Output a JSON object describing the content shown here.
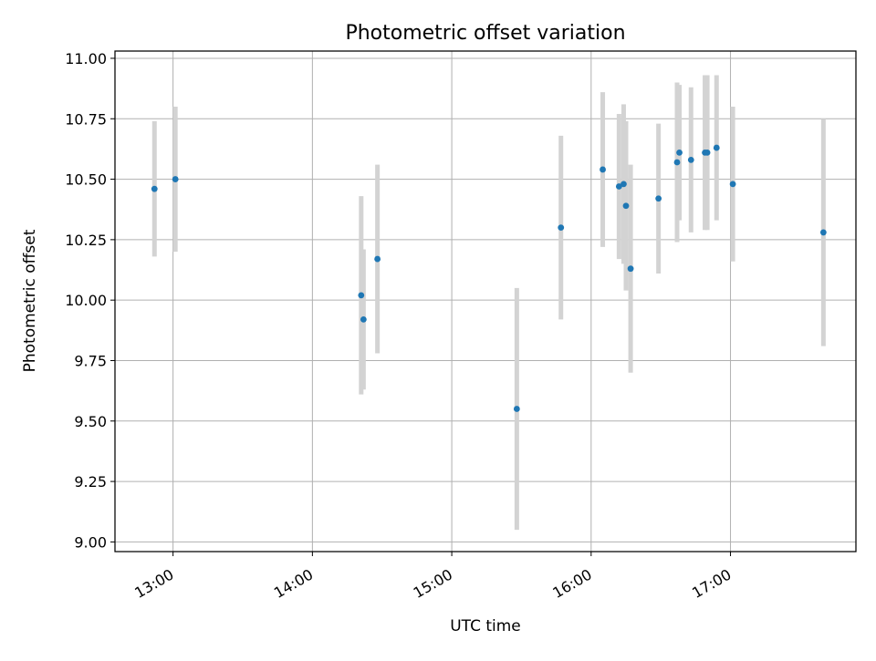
{
  "chart_data": {
    "type": "scatter",
    "title": "Photometric offset variation",
    "xlabel": "UTC time",
    "ylabel": "Photometric offset",
    "x_type": "time",
    "x_range": [
      "12:35",
      "17:54"
    ],
    "ylim": [
      8.96,
      11.03
    ],
    "x_ticks": [
      "13:00",
      "14:00",
      "15:00",
      "16:00",
      "17:00"
    ],
    "y_ticks": [
      "9.00",
      "9.25",
      "9.50",
      "9.75",
      "10.00",
      "10.25",
      "10.50",
      "10.75",
      "11.00"
    ],
    "grid": true,
    "error_bars": true,
    "colors": {
      "point": "#1f77b4",
      "error_bar": "#d3d3d3",
      "grid": "#b0b0b0"
    },
    "points": [
      {
        "x": "12:52",
        "y": 10.46,
        "err": 0.28
      },
      {
        "x": "13:01",
        "y": 10.5,
        "err": 0.3
      },
      {
        "x": "14:21",
        "y": 10.02,
        "err": 0.41
      },
      {
        "x": "14:22",
        "y": 9.92,
        "err": 0.29
      },
      {
        "x": "14:28",
        "y": 10.17,
        "err": 0.39
      },
      {
        "x": "15:28",
        "y": 9.55,
        "err": 0.5
      },
      {
        "x": "15:47",
        "y": 10.3,
        "err": 0.38
      },
      {
        "x": "16:05",
        "y": 10.54,
        "err": 0.32
      },
      {
        "x": "16:12",
        "y": 10.47,
        "err": 0.3
      },
      {
        "x": "16:14",
        "y": 10.48,
        "err": 0.33
      },
      {
        "x": "16:15",
        "y": 10.39,
        "err": 0.35
      },
      {
        "x": "16:17",
        "y": 10.13,
        "err": 0.43
      },
      {
        "x": "16:29",
        "y": 10.42,
        "err": 0.31
      },
      {
        "x": "16:37",
        "y": 10.57,
        "err": 0.33
      },
      {
        "x": "16:38",
        "y": 10.61,
        "err": 0.28
      },
      {
        "x": "16:43",
        "y": 10.58,
        "err": 0.3
      },
      {
        "x": "16:49",
        "y": 10.61,
        "err": 0.32
      },
      {
        "x": "16:50",
        "y": 10.61,
        "err": 0.32
      },
      {
        "x": "16:54",
        "y": 10.63,
        "err": 0.3
      },
      {
        "x": "17:01",
        "y": 10.48,
        "err": 0.32
      },
      {
        "x": "17:40",
        "y": 10.28,
        "err": 0.47
      }
    ]
  }
}
